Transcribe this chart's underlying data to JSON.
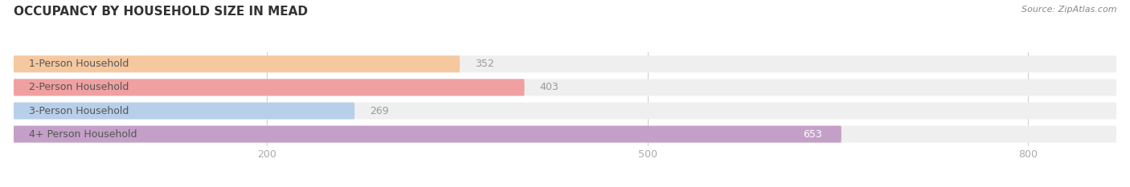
{
  "title": "OCCUPANCY BY HOUSEHOLD SIZE IN MEAD",
  "source": "Source: ZipAtlas.com",
  "categories": [
    "1-Person Household",
    "2-Person Household",
    "3-Person Household",
    "4+ Person Household"
  ],
  "values": [
    352,
    403,
    269,
    653
  ],
  "bar_colors": [
    "#f5c8a0",
    "#f0a0a0",
    "#b8cfea",
    "#c4a0c8"
  ],
  "bar_bg_color": "#efefef",
  "background_color": "#ffffff",
  "xlim_min": 0,
  "xlim_max": 870,
  "xticks": [
    200,
    500,
    800
  ],
  "label_color_inside": "#ffffff",
  "label_color_outside": "#aaaaaa",
  "title_fontsize": 11,
  "source_fontsize": 8,
  "tick_fontsize": 9,
  "bar_label_fontsize": 9,
  "category_fontsize": 9,
  "bar_height": 0.72,
  "bar_gap": 0.1
}
